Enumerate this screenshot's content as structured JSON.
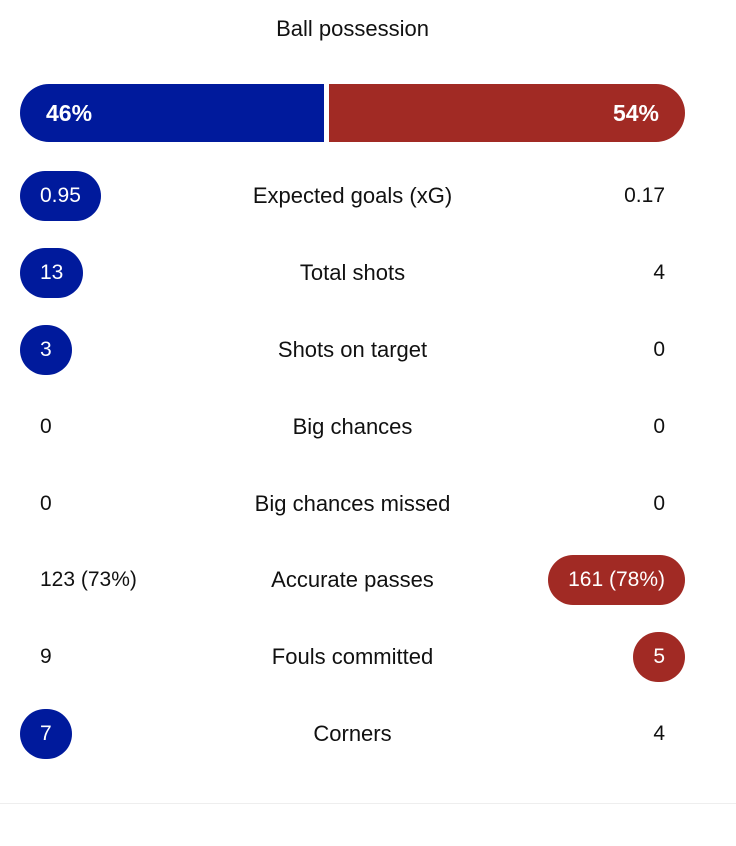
{
  "possession": {
    "title": "Ball possession",
    "home_label": "46%",
    "away_label": "54%",
    "home_fraction": 0.46,
    "away_fraction": 0.54,
    "home_color": "#001a9c",
    "away_color": "#a12a24"
  },
  "stats": [
    {
      "label": "Expected goals (xG)",
      "home": "0.95",
      "away": "0.17",
      "highlight": "home"
    },
    {
      "label": "Total shots",
      "home": "13",
      "away": "4",
      "highlight": "home"
    },
    {
      "label": "Shots on target",
      "home": "3",
      "away": "0",
      "highlight": "home"
    },
    {
      "label": "Big chances",
      "home": "0",
      "away": "0",
      "highlight": "none"
    },
    {
      "label": "Big chances missed",
      "home": "0",
      "away": "0",
      "highlight": "none"
    },
    {
      "label": "Accurate passes",
      "home": "123 (73%)",
      "away": "161 (78%)",
      "highlight": "away"
    },
    {
      "label": "Fouls committed",
      "home": "9",
      "away": "5",
      "highlight": "away"
    },
    {
      "label": "Corners",
      "home": "7",
      "away": "4",
      "highlight": "home"
    }
  ]
}
